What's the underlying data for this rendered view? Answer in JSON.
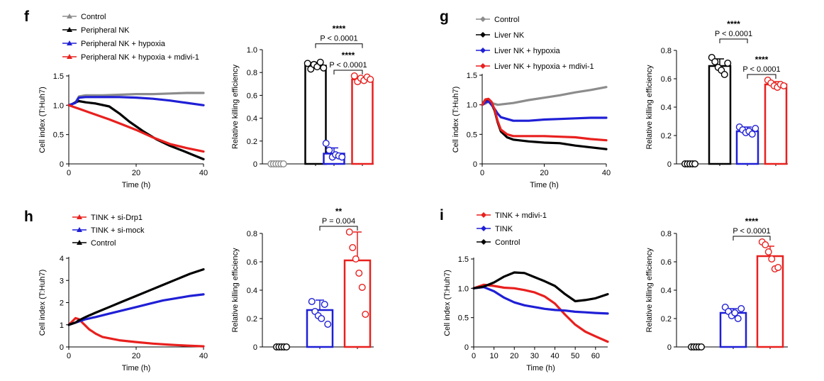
{
  "chart_data": [
    {
      "panel": "f",
      "line_chart": {
        "type": "line",
        "xlabel": "Time (h)",
        "ylabel": "Cell index (T:Huh7)",
        "xlim": [
          0,
          40
        ],
        "ylim": [
          0,
          1.5
        ],
        "xticks": [
          0,
          20,
          40
        ],
        "yticks": [
          "0",
          "0.5",
          "1.0",
          "1.5"
        ],
        "series": [
          {
            "name": "Control",
            "color": "#8c8c8c",
            "x": [
              0,
              1,
              2,
              3,
              5,
              10,
              15,
              20,
              25,
              30,
              35,
              40
            ],
            "y": [
              1.0,
              1.02,
              1.05,
              1.15,
              1.17,
              1.17,
              1.18,
              1.19,
              1.19,
              1.2,
              1.21,
              1.21
            ]
          },
          {
            "name": "Peripheral NK",
            "color": "#000000",
            "x": [
              0,
              1,
              2,
              3,
              5,
              8,
              12,
              15,
              18,
              22,
              26,
              30,
              34,
              37,
              40
            ],
            "y": [
              1.0,
              1.02,
              1.05,
              1.07,
              1.05,
              1.03,
              0.98,
              0.86,
              0.72,
              0.56,
              0.42,
              0.31,
              0.22,
              0.15,
              0.08
            ]
          },
          {
            "name": "Peripheral NK + hypoxia",
            "color": "#1f1fd6",
            "x": [
              0,
              1,
              2,
              3,
              5,
              10,
              15,
              20,
              25,
              30,
              35,
              40
            ],
            "y": [
              1.0,
              1.02,
              1.04,
              1.13,
              1.14,
              1.14,
              1.14,
              1.13,
              1.11,
              1.08,
              1.04,
              1.0
            ]
          },
          {
            "name": "Peripheral NK + hypoxia + mdivi-1",
            "color": "#e8201e",
            "x": [
              0,
              1,
              2,
              3,
              5,
              8,
              12,
              16,
              20,
              25,
              30,
              35,
              40
            ],
            "y": [
              1.0,
              0.98,
              0.96,
              0.94,
              0.9,
              0.84,
              0.76,
              0.67,
              0.58,
              0.45,
              0.34,
              0.27,
              0.21
            ]
          }
        ]
      },
      "bar_chart": {
        "type": "bar",
        "ylabel": "Relative killing efficiency",
        "ylim": [
          0,
          1.0
        ],
        "yticks": [
          "0",
          "0.2",
          "0.4",
          "0.6",
          "0.8",
          "1.0"
        ],
        "bars": [
          {
            "color": "#8c8c8c",
            "value": 0.0,
            "err": 0.0,
            "points": [
              0,
              0,
              0,
              0,
              0,
              0
            ]
          },
          {
            "color": "#000000",
            "value": 0.86,
            "err": 0.03,
            "points": [
              0.88,
              0.83,
              0.87,
              0.85,
              0.89,
              0.84
            ]
          },
          {
            "color": "#1f1fd6",
            "value": 0.09,
            "err": 0.05,
            "points": [
              0.18,
              0.12,
              0.06,
              0.08,
              0.07,
              0.06
            ]
          },
          {
            "color": "#e8201e",
            "value": 0.74,
            "err": 0.02,
            "points": [
              0.77,
              0.72,
              0.75,
              0.73,
              0.76,
              0.74
            ]
          }
        ],
        "annotations": [
          {
            "stars": "****",
            "p": "P < 0.0001",
            "from": 1,
            "to": 3
          },
          {
            "stars": "****",
            "p": "P < 0.0001",
            "from": 2,
            "to": 3
          }
        ]
      }
    },
    {
      "panel": "g",
      "line_chart": {
        "type": "line",
        "xlabel": "Time (h)",
        "ylabel": "Cell index (T:Huh7)",
        "xlim": [
          0,
          40
        ],
        "ylim": [
          0,
          1.5
        ],
        "xticks": [
          0,
          20,
          40
        ],
        "yticks": [
          "0",
          "0.5",
          "1.0",
          "1.5"
        ],
        "series": [
          {
            "name": "Control",
            "color": "#8c8c8c",
            "x": [
              0,
              1,
              2,
              3,
              5,
              10,
              15,
              20,
              25,
              30,
              35,
              40
            ],
            "y": [
              1.0,
              1.02,
              1.05,
              1.03,
              1.0,
              1.03,
              1.08,
              1.12,
              1.16,
              1.21,
              1.25,
              1.3
            ]
          },
          {
            "name": "Liver NK",
            "color": "#000000",
            "x": [
              0,
              1,
              2,
              3,
              4,
              5,
              6,
              8,
              10,
              15,
              20,
              25,
              30,
              35,
              40
            ],
            "y": [
              1.0,
              1.06,
              1.07,
              1.02,
              0.9,
              0.7,
              0.55,
              0.45,
              0.41,
              0.38,
              0.36,
              0.35,
              0.31,
              0.28,
              0.25
            ]
          },
          {
            "name": "Liver NK + hypoxia",
            "color": "#1f1fd6",
            "x": [
              0,
              1,
              2,
              3,
              4,
              5,
              6,
              8,
              10,
              15,
              20,
              25,
              30,
              35,
              40
            ],
            "y": [
              1.0,
              1.04,
              1.06,
              1.0,
              0.93,
              0.85,
              0.79,
              0.76,
              0.73,
              0.73,
              0.75,
              0.76,
              0.77,
              0.78,
              0.78
            ]
          },
          {
            "name": "Liver NK + hypoxia + mdivi-1",
            "color": "#e8201e",
            "x": [
              0,
              1,
              2,
              3,
              4,
              5,
              6,
              8,
              10,
              15,
              20,
              25,
              30,
              35,
              40
            ],
            "y": [
              1.0,
              1.09,
              1.1,
              1.05,
              0.92,
              0.72,
              0.58,
              0.5,
              0.47,
              0.47,
              0.47,
              0.46,
              0.45,
              0.42,
              0.4
            ]
          }
        ]
      },
      "bar_chart": {
        "type": "bar",
        "ylabel": "Relative killing efficiency",
        "ylim": [
          0,
          0.8
        ],
        "yticks": [
          "0",
          "0.2",
          "0.4",
          "0.6",
          "0.8"
        ],
        "bars": [
          {
            "color": "#000000",
            "value": 0.0,
            "err": 0.0,
            "points": [
              0,
              0,
              0,
              0,
              0
            ]
          },
          {
            "color": "#000000",
            "value": 0.69,
            "err": 0.05,
            "points": [
              0.75,
              0.72,
              0.68,
              0.66,
              0.63,
              0.71
            ]
          },
          {
            "color": "#1f1fd6",
            "value": 0.23,
            "err": 0.03,
            "points": [
              0.26,
              0.24,
              0.22,
              0.23,
              0.21,
              0.25
            ]
          },
          {
            "color": "#e8201e",
            "value": 0.56,
            "err": 0.02,
            "points": [
              0.59,
              0.57,
              0.55,
              0.54,
              0.56,
              0.55
            ]
          }
        ],
        "annotations": [
          {
            "stars": "****",
            "p": "P < 0.0001",
            "from": 1,
            "to": 2
          },
          {
            "stars": "****",
            "p": "P < 0.0001",
            "from": 2,
            "to": 3
          }
        ]
      }
    },
    {
      "panel": "h",
      "line_chart": {
        "type": "line",
        "xlabel": "Time (h)",
        "ylabel": "Cell index (T:Huh7)",
        "xlim": [
          0,
          40
        ],
        "ylim": [
          0,
          4
        ],
        "xticks": [
          0,
          20,
          40
        ],
        "yticks": [
          "0",
          "1",
          "2",
          "3",
          "4"
        ],
        "series": [
          {
            "name": "TINK + si-Drp1",
            "color": "#e8201e",
            "x": [
              0,
              1,
              2,
              3,
              4,
              5,
              6,
              8,
              10,
              15,
              20,
              25,
              30,
              35,
              40
            ],
            "y": [
              1.0,
              1.15,
              1.3,
              1.25,
              1.1,
              0.95,
              0.8,
              0.6,
              0.45,
              0.3,
              0.22,
              0.15,
              0.1,
              0.06,
              0.03
            ]
          },
          {
            "name": "TINK + si-mock",
            "color": "#1f1fd6",
            "x": [
              0,
              1,
              2,
              3,
              5,
              8,
              12,
              16,
              20,
              24,
              28,
              32,
              36,
              40
            ],
            "y": [
              1.0,
              1.05,
              1.1,
              1.15,
              1.25,
              1.35,
              1.5,
              1.65,
              1.8,
              1.95,
              2.1,
              2.2,
              2.3,
              2.37
            ]
          },
          {
            "name": "Control",
            "color": "#000000",
            "x": [
              0,
              1,
              2,
              3,
              5,
              8,
              12,
              16,
              20,
              24,
              28,
              32,
              36,
              40
            ],
            "y": [
              1.0,
              1.05,
              1.1,
              1.2,
              1.35,
              1.55,
              1.8,
              2.05,
              2.3,
              2.55,
              2.8,
              3.05,
              3.3,
              3.5
            ]
          }
        ]
      },
      "bar_chart": {
        "type": "bar",
        "ylabel": "Relative killing efficiency",
        "ylim": [
          0,
          0.8
        ],
        "yticks": [
          "0",
          "0.2",
          "0.4",
          "0.6",
          "0.8"
        ],
        "bars": [
          {
            "color": "#000000",
            "value": 0.0,
            "err": 0.0,
            "points": [
              0,
              0,
              0,
              0,
              0
            ]
          },
          {
            "color": "#1f1fd6",
            "value": 0.26,
            "err": 0.07,
            "points": [
              0.32,
              0.25,
              0.22,
              0.2,
              0.3,
              0.16
            ]
          },
          {
            "color": "#e8201e",
            "value": 0.61,
            "err": 0.2,
            "points": [
              0.81,
              0.7,
              0.62,
              0.52,
              0.42,
              0.23
            ]
          }
        ],
        "annotations": [
          {
            "stars": "**",
            "p": "P = 0.004",
            "from": 1,
            "to": 2
          }
        ]
      }
    },
    {
      "panel": "i",
      "line_chart": {
        "type": "line",
        "xlabel": "Time (h)",
        "ylabel": "Cell index (T:Huh7)",
        "xlim": [
          0,
          66
        ],
        "ylim": [
          0,
          1.5
        ],
        "xticks": [
          0,
          10,
          20,
          30,
          40,
          50,
          60
        ],
        "yticks": [
          "0",
          "0.5",
          "1.0",
          "1.5"
        ],
        "series": [
          {
            "name": "TINK + mdivi-1",
            "color": "#e8201e",
            "x": [
              0,
              5,
              10,
              15,
              20,
              25,
              30,
              35,
              40,
              45,
              50,
              55,
              60,
              66
            ],
            "y": [
              1.0,
              1.06,
              1.04,
              1.01,
              1.0,
              0.97,
              0.93,
              0.86,
              0.74,
              0.55,
              0.38,
              0.26,
              0.18,
              0.09
            ]
          },
          {
            "name": "TINK",
            "color": "#1f1fd6",
            "x": [
              0,
              5,
              10,
              15,
              20,
              25,
              30,
              35,
              40,
              45,
              50,
              55,
              60,
              66
            ],
            "y": [
              1.0,
              1.02,
              0.95,
              0.84,
              0.76,
              0.71,
              0.68,
              0.65,
              0.63,
              0.62,
              0.6,
              0.59,
              0.58,
              0.57
            ]
          },
          {
            "name": "Control",
            "color": "#000000",
            "x": [
              0,
              5,
              10,
              15,
              20,
              25,
              30,
              35,
              40,
              45,
              50,
              55,
              60,
              66
            ],
            "y": [
              1.0,
              1.03,
              1.1,
              1.2,
              1.27,
              1.26,
              1.19,
              1.12,
              1.04,
              0.9,
              0.78,
              0.8,
              0.83,
              0.9
            ]
          }
        ]
      },
      "bar_chart": {
        "type": "bar",
        "ylabel": "Relative killing efficiency",
        "ylim": [
          0,
          0.8
        ],
        "yticks": [
          "0",
          "0.2",
          "0.4",
          "0.6",
          "0.8"
        ],
        "bars": [
          {
            "color": "#000000",
            "value": 0.0,
            "err": 0.0,
            "points": [
              0,
              0,
              0,
              0,
              0
            ]
          },
          {
            "color": "#1f1fd6",
            "value": 0.24,
            "err": 0.03,
            "points": [
              0.28,
              0.25,
              0.22,
              0.24,
              0.2,
              0.27
            ]
          },
          {
            "color": "#e8201e",
            "value": 0.64,
            "err": 0.07,
            "points": [
              0.74,
              0.72,
              0.67,
              0.62,
              0.55,
              0.56
            ]
          }
        ],
        "annotations": [
          {
            "stars": "****",
            "p": "P < 0.0001",
            "from": 1,
            "to": 2
          }
        ]
      }
    }
  ]
}
